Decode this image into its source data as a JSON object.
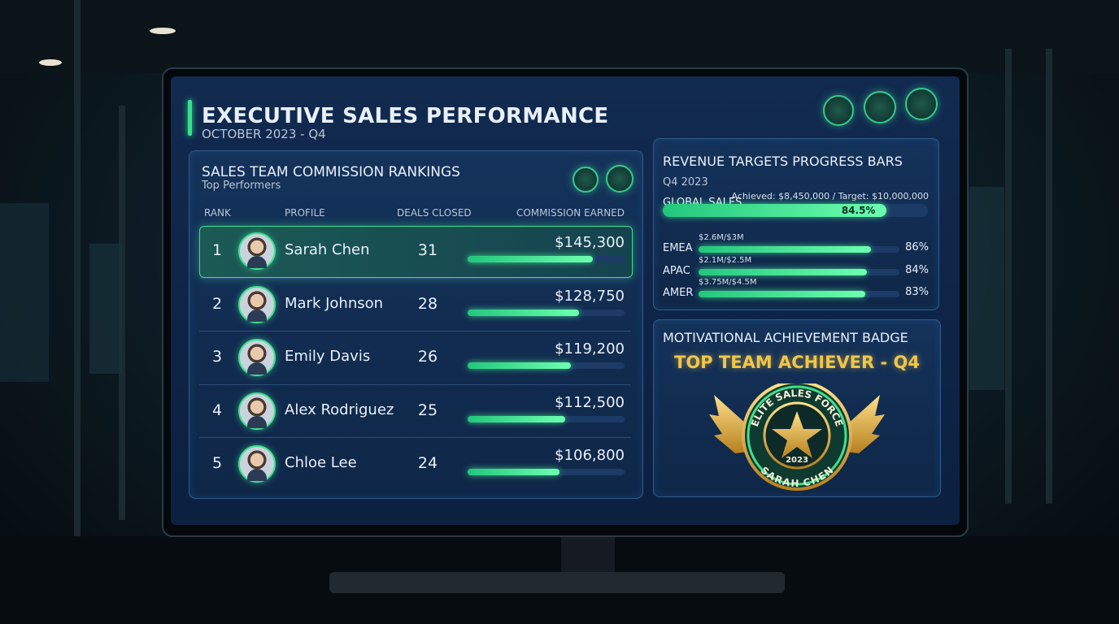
{
  "header": {
    "title": "EXECUTIVE SALES PERFORMANCE",
    "subtitle": "OCTOBER 2023 - Q4"
  },
  "rankings": {
    "title": "SALES TEAM COMMISSION RANKINGS",
    "subtitle": "Top Performers",
    "columns": [
      "RANK",
      "PROFILE",
      "DEALS CLOSED",
      "COMMISSION EARNED"
    ],
    "rows": [
      {
        "rank": 1,
        "name": "Sarah Chen",
        "deals": 31,
        "commission": {
          "value": 145300,
          "label": "$145,300"
        }
      },
      {
        "rank": 2,
        "name": "Mark Johnson",
        "deals": 28,
        "commission": {
          "value": 128750,
          "label": "$128,750"
        }
      },
      {
        "rank": 3,
        "name": "Emily Davis",
        "deals": 26,
        "commission": {
          "value": 119200,
          "label": "$119,200"
        }
      },
      {
        "rank": 4,
        "name": "Alex Rodriguez",
        "deals": 25,
        "commission": {
          "value": 112500,
          "label": "$112,500"
        }
      },
      {
        "rank": 5,
        "name": "Chloe Lee",
        "deals": 24,
        "commission": {
          "value": 106800,
          "label": "$106,800"
        }
      }
    ]
  },
  "targets": {
    "title": "REVENUE TARGETS PROGRESS BARS",
    "subtitle": "Q4 2023",
    "global": {
      "label": "GLOBAL SALES",
      "detail": "Achieved: $8,450,000 / Target: $10,000,000",
      "progress": {
        "value": 84.5,
        "label": "84.5%"
      }
    },
    "regions": [
      {
        "name": "EMEA",
        "detail": "$2.6M/$3M",
        "progress": {
          "value": 86,
          "label": "86%"
        }
      },
      {
        "name": "APAC",
        "detail": "$2.1M/$2.5M",
        "progress": {
          "value": 84,
          "label": "84%"
        }
      },
      {
        "name": "AMER",
        "detail": "$3.75M/$4.5M",
        "progress": {
          "value": 83,
          "label": "83%"
        }
      }
    ]
  },
  "badge": {
    "title": "MOTIVATIONAL ACHIEVEMENT BADGE",
    "headline": "TOP TEAM ACHIEVER - Q4",
    "ring_top": "ELITE SALES FORCE",
    "year": "2023",
    "ring_bottom": "SARAH CHEN"
  }
}
